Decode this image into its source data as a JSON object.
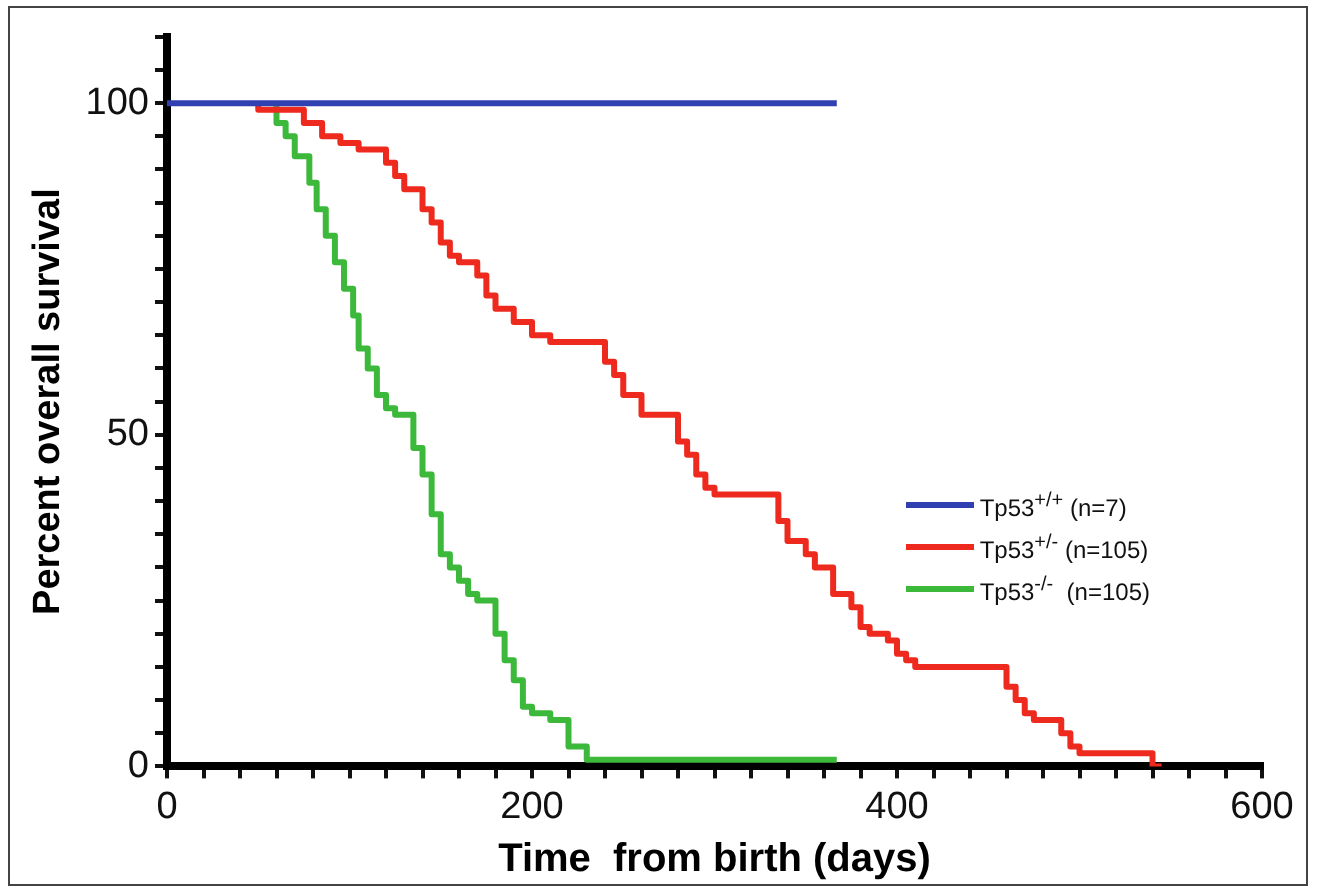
{
  "chart_data": {
    "type": "step",
    "xlabel": "Time  from birth (days)",
    "ylabel": "Percent overall survival",
    "xlim": [
      0,
      600
    ],
    "ylim": [
      0,
      110
    ],
    "xticks": [
      0,
      {
        "value": 20,
        "label": null
      },
      {
        "value": 40,
        "label": null
      },
      {
        "value": 60,
        "label": null
      },
      {
        "value": 80,
        "label": null
      },
      {
        "value": 100,
        "label": null
      },
      {
        "value": 120,
        "label": null
      },
      {
        "value": 140,
        "label": null
      },
      {
        "value": 160,
        "label": null
      },
      {
        "value": 180,
        "label": null
      },
      200,
      {
        "value": 220,
        "label": null
      },
      {
        "value": 240,
        "label": null
      },
      {
        "value": 260,
        "label": null
      },
      {
        "value": 280,
        "label": null
      },
      {
        "value": 300,
        "label": null
      },
      {
        "value": 320,
        "label": null
      },
      {
        "value": 340,
        "label": null
      },
      {
        "value": 360,
        "label": null
      },
      {
        "value": 380,
        "label": null
      },
      400,
      {
        "value": 420,
        "label": null
      },
      {
        "value": 440,
        "label": null
      },
      {
        "value": 460,
        "label": null
      },
      {
        "value": 480,
        "label": null
      },
      {
        "value": 500,
        "label": null
      },
      {
        "value": 520,
        "label": null
      },
      {
        "value": 540,
        "label": null
      },
      {
        "value": 560,
        "label": null
      },
      {
        "value": 580,
        "label": null
      },
      600
    ],
    "yticks": [
      0,
      {
        "value": 5,
        "label": null
      },
      {
        "value": 10,
        "label": null
      },
      {
        "value": 15,
        "label": null
      },
      {
        "value": 20,
        "label": null
      },
      {
        "value": 25,
        "label": null
      },
      {
        "value": 30,
        "label": null
      },
      {
        "value": 35,
        "label": null
      },
      {
        "value": 40,
        "label": null
      },
      {
        "value": 45,
        "label": null
      },
      50,
      {
        "value": 55,
        "label": null
      },
      {
        "value": 60,
        "label": null
      },
      {
        "value": 65,
        "label": null
      },
      {
        "value": 70,
        "label": null
      },
      {
        "value": 75,
        "label": null
      },
      {
        "value": 80,
        "label": null
      },
      {
        "value": 85,
        "label": null
      },
      {
        "value": 90,
        "label": null
      },
      {
        "value": 95,
        "label": null
      },
      100,
      {
        "value": 105,
        "label": null
      },
      {
        "value": 110,
        "label": null
      }
    ],
    "grid": false,
    "legend": "right",
    "marker": "none",
    "line_style": "solid",
    "series": [
      {
        "name": "Tp53$^{+/+}$ (n=7)",
        "color": "#3040b0",
        "x": [
          0,
          367
        ],
        "values": [
          100,
          100
        ]
      },
      {
        "name": "Tp53$^{+/-}$ (n=105)",
        "color": "#ee2a1e",
        "x": [
          50,
          75,
          85,
          95,
          105,
          120,
          125,
          130,
          140,
          145,
          150,
          155,
          160,
          170,
          175,
          180,
          190,
          200,
          210,
          220,
          240,
          245,
          250,
          260,
          265,
          280,
          285,
          290,
          295,
          300,
          310,
          335,
          340,
          350,
          355,
          365,
          375,
          380,
          385,
          395,
          400,
          405,
          410,
          420,
          460,
          465,
          470,
          475,
          490,
          495,
          500,
          520,
          540,
          545
        ],
        "values": [
          100,
          99,
          97,
          95,
          94,
          93,
          91,
          89,
          87,
          84,
          82,
          79,
          77,
          76,
          74,
          71,
          69,
          67,
          65,
          64,
          64,
          61,
          59,
          56,
          53,
          53,
          49,
          47,
          44,
          42,
          41,
          41,
          37,
          34,
          32,
          30,
          26,
          24,
          21,
          20,
          19,
          17,
          16,
          15,
          15,
          12,
          10,
          8,
          7,
          5,
          3,
          2,
          2,
          0
        ]
      },
      {
        "name": "Tp53$^{-/-}$  (n=105)",
        "color": "#3cb83a",
        "x": [
          60,
          65,
          70,
          78,
          82,
          87,
          92,
          97,
          102,
          105,
          110,
          115,
          120,
          125,
          135,
          140,
          145,
          150,
          155,
          160,
          165,
          170,
          180,
          185,
          190,
          195,
          200,
          210,
          220,
          230,
          232,
          245,
          367
        ],
        "values": [
          100,
          97,
          95,
          92,
          88,
          84,
          80,
          76,
          72,
          68,
          63,
          60,
          56,
          54,
          53,
          48,
          44,
          38,
          32,
          30,
          28,
          26,
          25,
          20,
          16,
          13,
          9,
          8,
          7,
          3,
          1,
          1,
          1
        ]
      }
    ]
  }
}
